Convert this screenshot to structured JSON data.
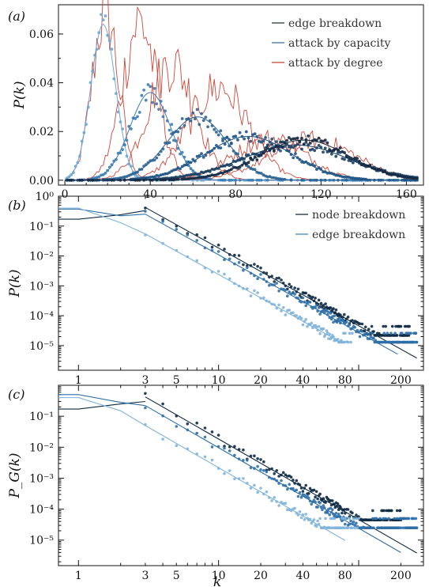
{
  "chart_data": [
    {
      "panel": "(a)",
      "type": "line",
      "xlabel": "",
      "ylabel": "P(k)",
      "xlim": [
        -3,
        168
      ],
      "ylim": [
        -0.002,
        0.072
      ],
      "x_ticks": [
        0,
        40,
        80,
        120,
        160
      ],
      "x_tick_labels": [
        "0",
        "40",
        "80",
        "120",
        "160"
      ],
      "y_ticks": [
        0,
        0.02,
        0.04,
        0.06
      ],
      "y_tick_labels": [
        "0.00",
        "0.02",
        "0.04",
        "0.06"
      ],
      "legend_position": "top-right",
      "legend": [
        {
          "label": "edge breakdown",
          "color": "#1b2a3a"
        },
        {
          "label": "attack by capacity",
          "color": "#2b6ea0"
        },
        {
          "label": "attack by degree",
          "color": "#c0392b"
        }
      ],
      "distributions": [
        {
          "mean": 18,
          "sd": 5.8,
          "peak": 0.064,
          "color": "#6aa9d6"
        },
        {
          "mean": 40,
          "sd": 9.5,
          "peak": 0.036,
          "color": "#3c7db5"
        },
        {
          "mean": 62,
          "sd": 14,
          "peak": 0.026,
          "color": "#2c6494"
        },
        {
          "mean": 86,
          "sd": 20,
          "peak": 0.018,
          "color": "#1f5485"
        },
        {
          "mean": 108,
          "sd": 25,
          "peak": 0.0145,
          "color": "#1a3f63"
        },
        {
          "mean": 112,
          "sd": 21,
          "peak": 0.0165,
          "color": "#152a42"
        }
      ],
      "degree_attack_peaks": [
        {
          "mean": 19,
          "sd": 6,
          "peak": 0.07
        },
        {
          "mean": 35,
          "sd": 8,
          "peak": 0.065
        },
        {
          "mean": 50,
          "sd": 11,
          "peak": 0.048
        },
        {
          "mean": 72,
          "sd": 14,
          "peak": 0.038
        },
        {
          "mean": 96,
          "sd": 17,
          "peak": 0.017
        },
        {
          "mean": 116,
          "sd": 20,
          "peak": 0.0165
        }
      ]
    },
    {
      "panel": "(b)",
      "type": "scatter",
      "xscale": "log",
      "yscale": "log",
      "xlabel": "",
      "ylabel": "P(k)",
      "xlim": [
        0.72,
        290
      ],
      "ylim": [
        1.5e-06,
        1
      ],
      "x_ticks": [
        1,
        3,
        5,
        10,
        20,
        40,
        80,
        200
      ],
      "x_tick_labels": [
        "1",
        "3",
        "5",
        "10",
        "20",
        "40",
        "80",
        "200"
      ],
      "y_ticks": [
        1e-05,
        0.0001,
        0.001,
        0.01,
        0.1,
        1
      ],
      "y_tick_labels": [
        "10⁻⁵",
        "10⁻⁴",
        "10⁻³",
        "10⁻²",
        "10⁻¹",
        "10⁰"
      ],
      "legend_position": "top-right",
      "legend": [
        {
          "label": "node breakdown",
          "color": "#0d1b2a"
        },
        {
          "label": "edge breakdown",
          "color": "#3b7fb8"
        }
      ],
      "series": [
        {
          "name": "node breakdown",
          "color": "#0f2a44",
          "line_from": [
            3,
            0.42
          ],
          "slope": -2.6,
          "line_to": 260,
          "lowhead": [
            [
              0.72,
              0.17
            ],
            [
              1,
              0.17
            ],
            [
              2,
              0.24
            ],
            [
              3,
              0.33
            ]
          ],
          "floor": 2.2e-05,
          "tail_until": 230
        },
        {
          "name": "edge breakdown",
          "color": "#2f6fa8",
          "line_from": [
            3,
            0.25
          ],
          "slope": -2.6,
          "line_to": 190,
          "lowhead": [
            [
              0.72,
              0.37
            ],
            [
              1,
              0.37
            ],
            [
              2,
              0.22
            ],
            [
              3,
              0.25
            ]
          ],
          "floor": 1.3e-05,
          "tail_until": 260
        },
        {
          "name": "",
          "color": "#7fb4dc",
          "line_from": [
            3,
            0.055
          ],
          "slope": -2.6,
          "line_to": 70,
          "lowhead": [
            [
              0.72,
              0.4
            ],
            [
              1,
              0.4
            ],
            [
              2,
              0.13
            ],
            [
              3,
              0.055
            ]
          ],
          "floor": 1.3e-05,
          "tail_until": 90
        }
      ]
    },
    {
      "panel": "(c)",
      "type": "scatter",
      "xscale": "log",
      "yscale": "log",
      "xlabel": "k",
      "ylabel": "P_G(k)",
      "xlim": [
        0.72,
        290
      ],
      "ylim": [
        1.5e-06,
        1
      ],
      "x_ticks": [
        1,
        3,
        5,
        10,
        20,
        40,
        80,
        200
      ],
      "x_tick_labels": [
        "1",
        "3",
        "5",
        "10",
        "20",
        "40",
        "80",
        "200"
      ],
      "y_ticks": [
        1e-05,
        0.0001,
        0.001,
        0.01,
        0.1
      ],
      "y_tick_labels": [
        "10⁻⁵",
        "10⁻⁴",
        "10⁻³",
        "10⁻²",
        "10⁻¹"
      ],
      "series": [
        {
          "name": "",
          "color": "#0f2a44",
          "line_from": [
            3,
            0.42
          ],
          "slope": -2.6,
          "line_to": 260,
          "lowhead": [
            [
              0.72,
              0.17
            ],
            [
              1,
              0.17
            ],
            [
              2,
              0.25
            ],
            [
              3,
              0.3
            ]
          ],
          "floor": 4.5e-05,
          "tail_until": 200
        },
        {
          "name": "",
          "color": "#2f6fa8",
          "line_from": [
            3,
            0.22
          ],
          "slope": -2.6,
          "line_to": 200,
          "lowhead": [
            [
              0.72,
              0.5
            ],
            [
              1,
              0.5
            ],
            [
              2,
              0.28
            ],
            [
              3,
              0.22
            ]
          ],
          "floor": 2.5e-05,
          "tail_until": 260
        },
        {
          "name": "",
          "color": "#7fb4dc",
          "line_from": [
            3,
            0.05
          ],
          "slope": -2.6,
          "line_to": 80,
          "lowhead": [
            [
              0.72,
              0.4
            ],
            [
              1,
              0.4
            ],
            [
              2,
              0.15
            ],
            [
              3,
              0.05
            ]
          ],
          "floor": 2.5e-05,
          "tail_until": 100
        }
      ]
    }
  ]
}
